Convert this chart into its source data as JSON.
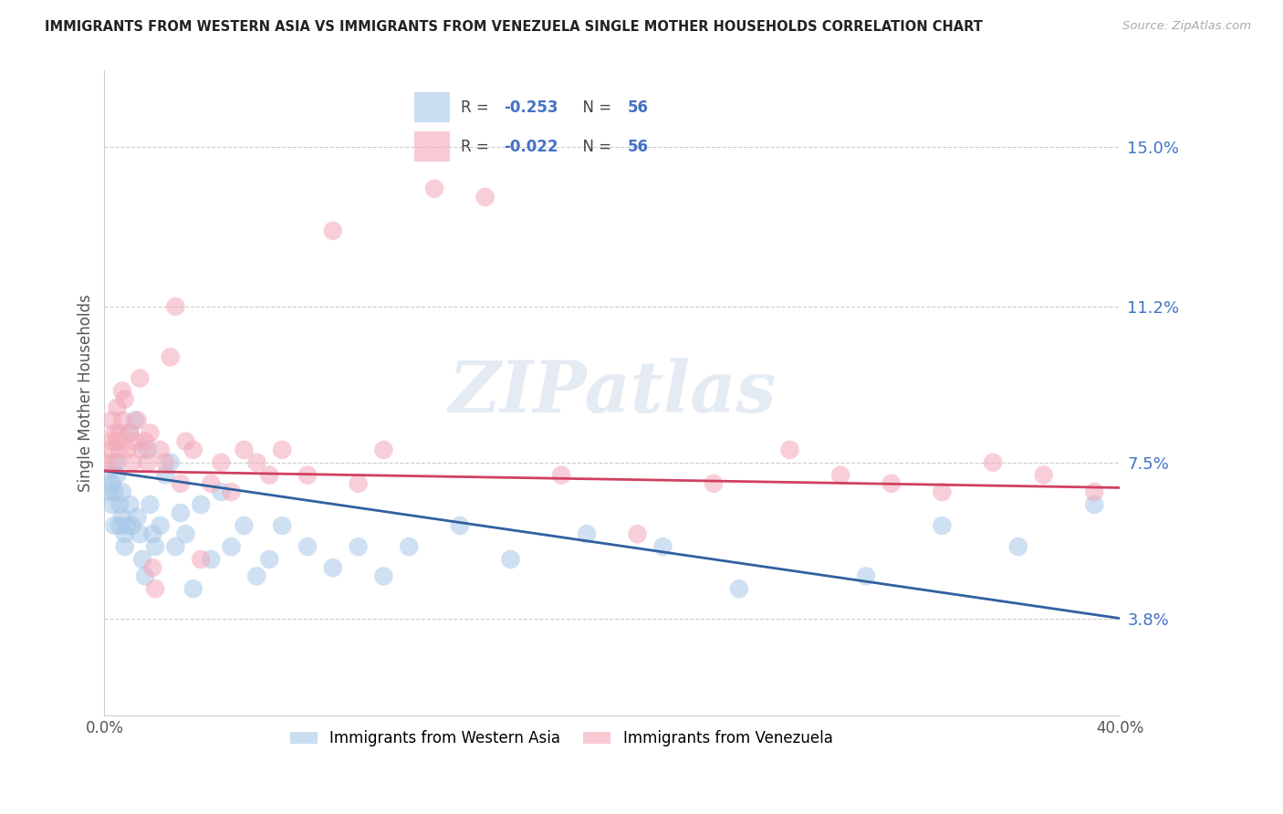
{
  "title": "IMMIGRANTS FROM WESTERN ASIA VS IMMIGRANTS FROM VENEZUELA SINGLE MOTHER HOUSEHOLDS CORRELATION CHART",
  "source": "Source: ZipAtlas.com",
  "ylabel": "Single Mother Households",
  "ytick_labels": [
    "15.0%",
    "11.2%",
    "7.5%",
    "3.8%"
  ],
  "ytick_values": [
    0.15,
    0.112,
    0.075,
    0.038
  ],
  "xlim": [
    0.0,
    0.4
  ],
  "ylim": [
    0.015,
    0.168
  ],
  "blue_R": "-0.253",
  "blue_N": "56",
  "pink_R": "-0.022",
  "pink_N": "56",
  "blue_color": "#a8c8e8",
  "pink_color": "#f4a8b8",
  "blue_line_color": "#3060a0",
  "pink_line_color": "#d04060",
  "blue_label": "Immigrants from Western Asia",
  "pink_label": "Immigrants from Venezuela",
  "watermark": "ZIPatlas",
  "blue_x": [
    0.001,
    0.002,
    0.003,
    0.003,
    0.004,
    0.004,
    0.005,
    0.005,
    0.006,
    0.006,
    0.007,
    0.007,
    0.008,
    0.008,
    0.009,
    0.01,
    0.01,
    0.011,
    0.012,
    0.013,
    0.014,
    0.015,
    0.016,
    0.017,
    0.018,
    0.019,
    0.02,
    0.022,
    0.024,
    0.026,
    0.028,
    0.03,
    0.032,
    0.035,
    0.038,
    0.042,
    0.046,
    0.05,
    0.055,
    0.06,
    0.065,
    0.07,
    0.08,
    0.09,
    0.1,
    0.11,
    0.12,
    0.14,
    0.16,
    0.19,
    0.22,
    0.25,
    0.3,
    0.33,
    0.36,
    0.39
  ],
  "blue_y": [
    0.072,
    0.068,
    0.065,
    0.07,
    0.06,
    0.068,
    0.072,
    0.075,
    0.065,
    0.06,
    0.062,
    0.068,
    0.058,
    0.055,
    0.06,
    0.082,
    0.065,
    0.06,
    0.085,
    0.062,
    0.058,
    0.052,
    0.048,
    0.078,
    0.065,
    0.058,
    0.055,
    0.06,
    0.072,
    0.075,
    0.055,
    0.063,
    0.058,
    0.045,
    0.065,
    0.052,
    0.068,
    0.055,
    0.06,
    0.048,
    0.052,
    0.06,
    0.055,
    0.05,
    0.055,
    0.048,
    0.055,
    0.06,
    0.052,
    0.058,
    0.055,
    0.045,
    0.048,
    0.06,
    0.055,
    0.065
  ],
  "pink_x": [
    0.001,
    0.002,
    0.003,
    0.003,
    0.004,
    0.004,
    0.005,
    0.005,
    0.006,
    0.006,
    0.007,
    0.007,
    0.008,
    0.009,
    0.01,
    0.011,
    0.012,
    0.013,
    0.014,
    0.015,
    0.016,
    0.017,
    0.018,
    0.019,
    0.02,
    0.022,
    0.024,
    0.026,
    0.028,
    0.03,
    0.032,
    0.035,
    0.038,
    0.042,
    0.046,
    0.05,
    0.055,
    0.06,
    0.065,
    0.07,
    0.08,
    0.09,
    0.1,
    0.11,
    0.13,
    0.15,
    0.18,
    0.21,
    0.24,
    0.27,
    0.29,
    0.31,
    0.33,
    0.35,
    0.37,
    0.39
  ],
  "pink_y": [
    0.075,
    0.078,
    0.08,
    0.085,
    0.075,
    0.082,
    0.08,
    0.088,
    0.078,
    0.082,
    0.085,
    0.092,
    0.09,
    0.078,
    0.082,
    0.075,
    0.08,
    0.085,
    0.095,
    0.078,
    0.08,
    0.075,
    0.082,
    0.05,
    0.045,
    0.078,
    0.075,
    0.1,
    0.112,
    0.07,
    0.08,
    0.078,
    0.052,
    0.07,
    0.075,
    0.068,
    0.078,
    0.075,
    0.072,
    0.078,
    0.072,
    0.13,
    0.07,
    0.078,
    0.14,
    0.138,
    0.072,
    0.058,
    0.07,
    0.078,
    0.072,
    0.07,
    0.068,
    0.075,
    0.072,
    0.068
  ]
}
